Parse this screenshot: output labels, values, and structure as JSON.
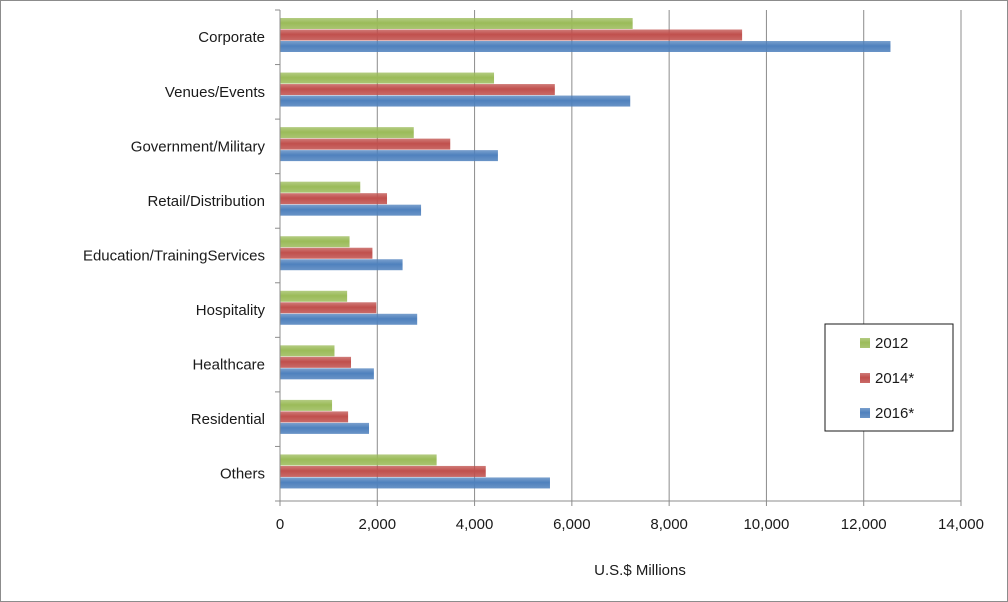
{
  "chart_data": {
    "type": "bar",
    "orientation": "horizontal",
    "categories": [
      "Corporate",
      "Venues/Events",
      "Government/Military",
      "Retail/Distribution",
      "Education/TrainingServices",
      "Hospitality",
      "Healthcare",
      "Residential",
      "Others"
    ],
    "series": [
      {
        "name": "2012",
        "color": "#9bbb59",
        "values": [
          7250,
          4400,
          2750,
          1650,
          1430,
          1380,
          1120,
          1070,
          3220
        ]
      },
      {
        "name": "2014*",
        "color": "#c0504d",
        "values": [
          9500,
          5650,
          3500,
          2200,
          1900,
          1980,
          1460,
          1400,
          4230
        ]
      },
      {
        "name": "2016*",
        "color": "#4f81bd",
        "values": [
          12550,
          7200,
          4480,
          2900,
          2520,
          2820,
          1930,
          1830,
          5550
        ]
      }
    ],
    "xlabel": "U.S.$ Millions",
    "xlim": [
      0,
      14000
    ],
    "xticks": [
      0,
      2000,
      4000,
      6000,
      8000,
      10000,
      12000,
      14000
    ],
    "xtick_labels": [
      "0",
      "2,000",
      "4,000",
      "6,000",
      "8,000",
      "10,000",
      "12,000",
      "14,000"
    ],
    "grid": "vertical",
    "legend_position": "right"
  }
}
